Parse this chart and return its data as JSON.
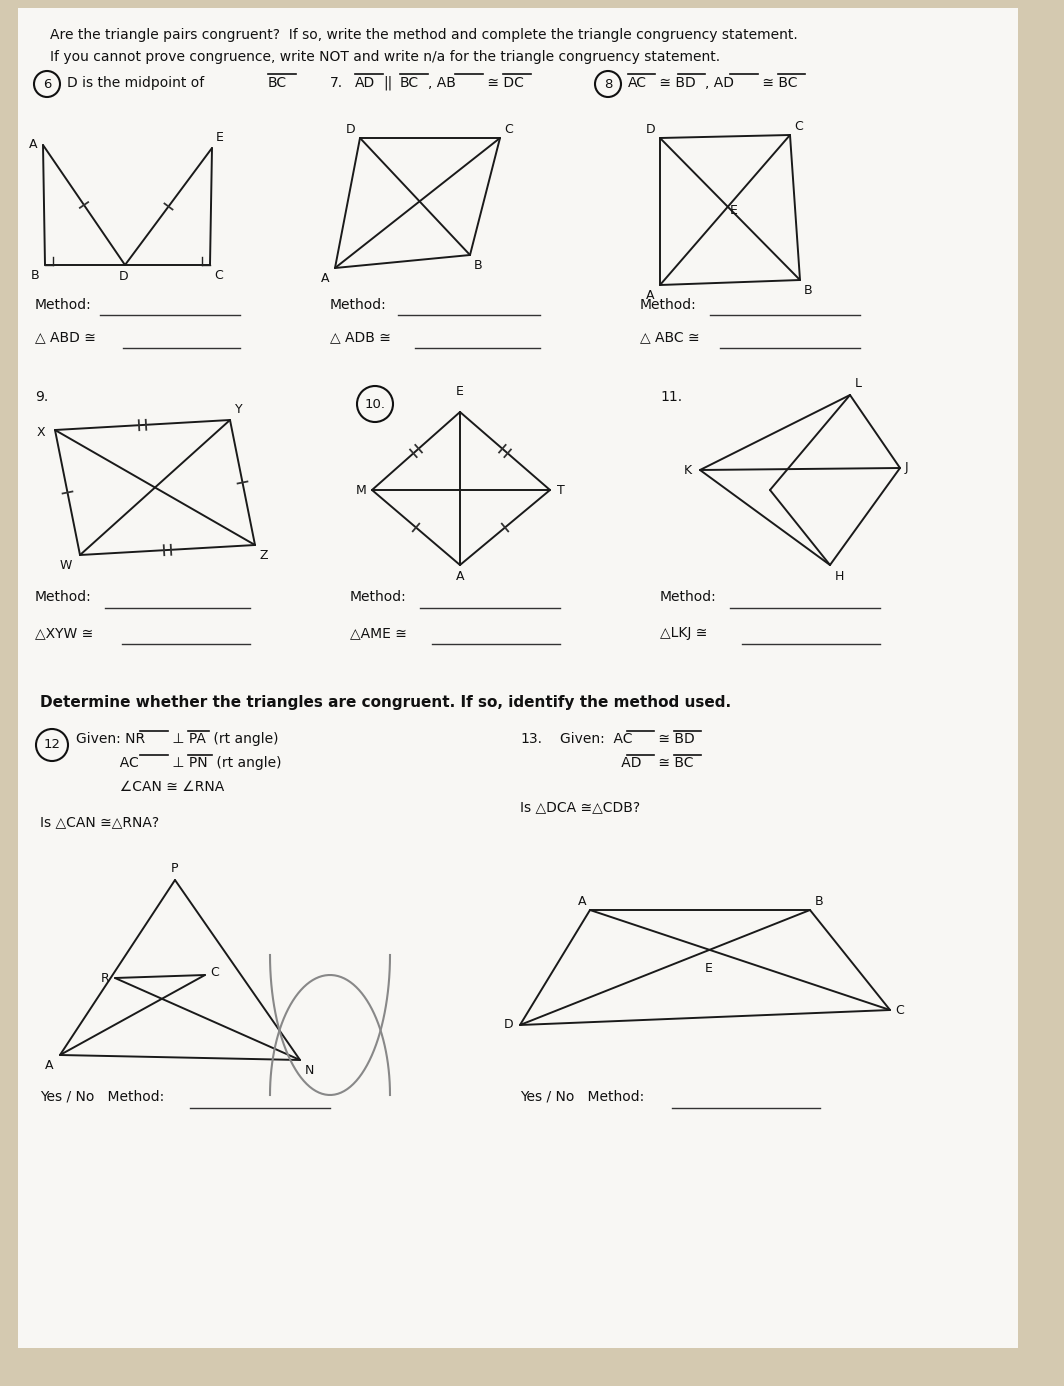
{
  "bg_color": "#d4c9b0",
  "paper_color": "#f8f7f4",
  "title1": "Are the triangle pairs congruent?  If so, write the method and complete the triangle congruency statement.",
  "title2": "If you cannot prove congruence, write NOT and write n/a for the triangle congruency statement.",
  "section2": "Determine whether the triangles are congruent. If so, identify the method used."
}
